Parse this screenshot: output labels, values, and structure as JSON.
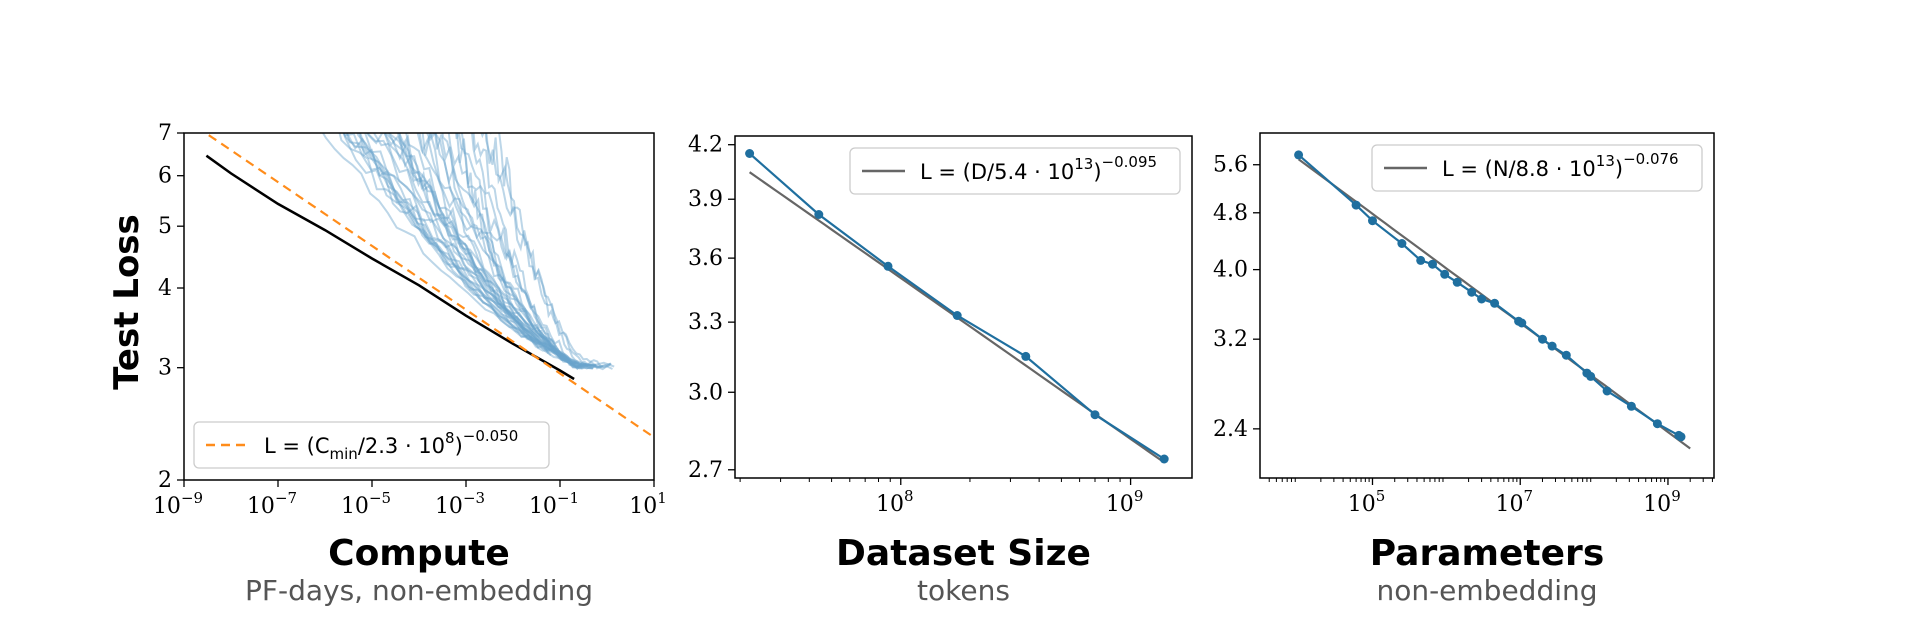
{
  "y_axis_label": "Test Loss",
  "chart_data": [
    {
      "type": "line",
      "title": "Compute",
      "subtitle": "PF-days, non-embedding",
      "xscale": "log",
      "yscale": "log",
      "xlim": [
        1e-09,
        10
      ],
      "ylim": [
        2,
        7
      ],
      "xticks": [
        {
          "v": 1e-09,
          "e": "−9"
        },
        {
          "v": 1e-07,
          "e": "−7"
        },
        {
          "v": 1e-05,
          "e": "−5"
        },
        {
          "v": 0.001,
          "e": "−3"
        },
        {
          "v": 0.1,
          "e": "−1"
        },
        {
          "v": 10,
          "e": "1"
        }
      ],
      "yticks": [
        {
          "v": 2,
          "label": "2"
        },
        {
          "v": 3,
          "label": "3"
        },
        {
          "v": 4,
          "label": "4"
        },
        {
          "v": 5,
          "label": "5"
        },
        {
          "v": 6,
          "label": "6"
        },
        {
          "v": 7,
          "label": "7"
        }
      ],
      "legend": {
        "position": "lower-left",
        "text_main": "L = (C",
        "text_sub": "min",
        "text_mid": "/2.3 · 10",
        "text_sup1": "8",
        "text_close": ")",
        "text_sup2": "−0.050"
      },
      "fit": {
        "name": "L = (C_min/2.3·10^8)^−0.050",
        "color": "#ff8c1a",
        "style": "dashed",
        "c0": 230000000.0,
        "alpha": 0.05,
        "x_range": [
          1e-09,
          10
        ]
      },
      "frontier": {
        "color": "#000000",
        "x": [
          3e-09,
          1e-08,
          1e-07,
          1e-06,
          1e-05,
          0.0001,
          0.001,
          0.01,
          0.1,
          0.2
        ],
        "y": [
          6.45,
          6.05,
          5.42,
          4.93,
          4.45,
          4.04,
          3.62,
          3.27,
          2.97,
          2.88
        ]
      },
      "runs": {
        "color": "#6aa3cc",
        "count": 38,
        "start_x_range": [
          1e-09,
          0.003
        ],
        "end_x_range": [
          0.01,
          1.5
        ]
      }
    },
    {
      "type": "line",
      "title": "Dataset Size",
      "subtitle": "tokens",
      "xscale": "log",
      "yscale": "log",
      "xlim": [
        19000000.0,
        1850000000.0
      ],
      "ylim": [
        2.67,
        4.25
      ],
      "xticks": [
        {
          "v": 100000000.0,
          "e": "8"
        },
        {
          "v": 1000000000.0,
          "e": "9"
        }
      ],
      "yticks": [
        {
          "v": 2.7,
          "label": "2.7"
        },
        {
          "v": 3.0,
          "label": "3.0"
        },
        {
          "v": 3.3,
          "label": "3.3"
        },
        {
          "v": 3.6,
          "label": "3.6"
        },
        {
          "v": 3.9,
          "label": "3.9"
        },
        {
          "v": 4.2,
          "label": "4.2"
        }
      ],
      "legend": {
        "position": "top-right",
        "text_main": "L = (D/5.4 · 10",
        "text_sup1": "13",
        "text_close": ")",
        "text_sup2": "−0.095"
      },
      "fit": {
        "color": "#666666",
        "c0": 54000000000000.0,
        "alpha": 0.095,
        "x_range": [
          22000000.0,
          1400000000.0
        ]
      },
      "series": [
        {
          "color": "#1f6f9f",
          "x": [
            22000000.0,
            44000000.0,
            88000000.0,
            176000000.0,
            350000000.0,
            700000000.0,
            1400000000.0
          ],
          "y": [
            4.15,
            3.82,
            3.56,
            3.33,
            3.15,
            2.91,
            2.74
          ]
        }
      ]
    },
    {
      "type": "line",
      "title": "Parameters",
      "subtitle": "non-embedding",
      "xscale": "log",
      "yscale": "log",
      "xlim": [
        3000.0,
        4200000000.0
      ],
      "ylim": [
        2.05,
        6.2
      ],
      "xticks": [
        {
          "v": 100000.0,
          "e": "5"
        },
        {
          "v": 10000000.0,
          "e": "7"
        },
        {
          "v": 1000000000.0,
          "e": "9"
        }
      ],
      "yticks": [
        {
          "v": 2.4,
          "label": "2.4"
        },
        {
          "v": 3.2,
          "label": "3.2"
        },
        {
          "v": 4.0,
          "label": "4.0"
        },
        {
          "v": 4.8,
          "label": "4.8"
        },
        {
          "v": 5.6,
          "label": "5.6"
        }
      ],
      "legend": {
        "position": "top-right",
        "text_main": "L = (N/8.8 · 10",
        "text_sup1": "13",
        "text_close": ")",
        "text_sup2": "−0.076"
      },
      "fit": {
        "color": "#666666",
        "c0": 88000000000000.0,
        "alpha": 0.076,
        "x_range": [
          10000.0,
          2000000000.0
        ]
      },
      "series": [
        {
          "color": "#1f6f9f",
          "x": [
            10000.0,
            60000.0,
            100000.0,
            250000.0,
            450000.0,
            650000.0,
            950000.0,
            1400000.0,
            2200000.0,
            3000000.0,
            4500000.0,
            9500000.0,
            10500000.0,
            20000000.0,
            27000000.0,
            42000000.0,
            80000000.0,
            90000000.0,
            150000000.0,
            320000000.0,
            720000000.0,
            1400000000.0,
            1500000000.0
          ],
          "y": [
            5.78,
            4.92,
            4.68,
            4.35,
            4.12,
            4.07,
            3.94,
            3.84,
            3.72,
            3.64,
            3.59,
            3.39,
            3.37,
            3.2,
            3.13,
            3.04,
            2.87,
            2.84,
            2.71,
            2.58,
            2.44,
            2.35,
            2.34
          ]
        }
      ]
    }
  ]
}
